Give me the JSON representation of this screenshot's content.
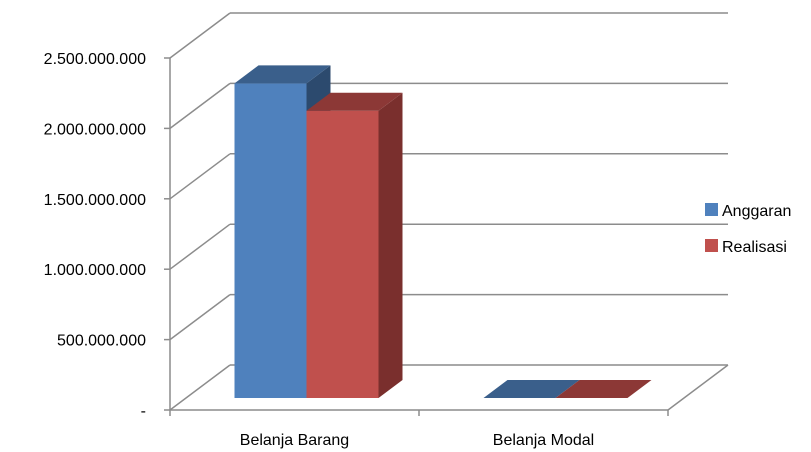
{
  "chart_data": {
    "type": "bar",
    "categories": [
      "Belanja Barang",
      "Belanja Modal"
    ],
    "series": [
      {
        "name": "Anggaran",
        "values": [
          2300000000,
          0
        ],
        "color": "#4F81BD",
        "top_color": "#3A5F8B",
        "side_color": "#2C4A6E"
      },
      {
        "name": "Realisasi",
        "values": [
          2100000000,
          0
        ],
        "color": "#C0504D",
        "top_color": "#8C3836",
        "side_color": "#7A2F2D"
      }
    ],
    "ylim": [
      0,
      2500000000
    ],
    "y_ticks": [
      {
        "value": 0,
        "label": "-"
      },
      {
        "value": 500000000,
        "label": "500.000.000"
      },
      {
        "value": 1000000000,
        "label": "1.000.000.000"
      },
      {
        "value": 1500000000,
        "label": "1.500.000.000"
      },
      {
        "value": 2000000000,
        "label": "2.000.000.000"
      },
      {
        "value": 2500000000,
        "label": "2.500.000.000"
      }
    ],
    "grid": true,
    "legend_position": "right",
    "style": "3d-column"
  }
}
